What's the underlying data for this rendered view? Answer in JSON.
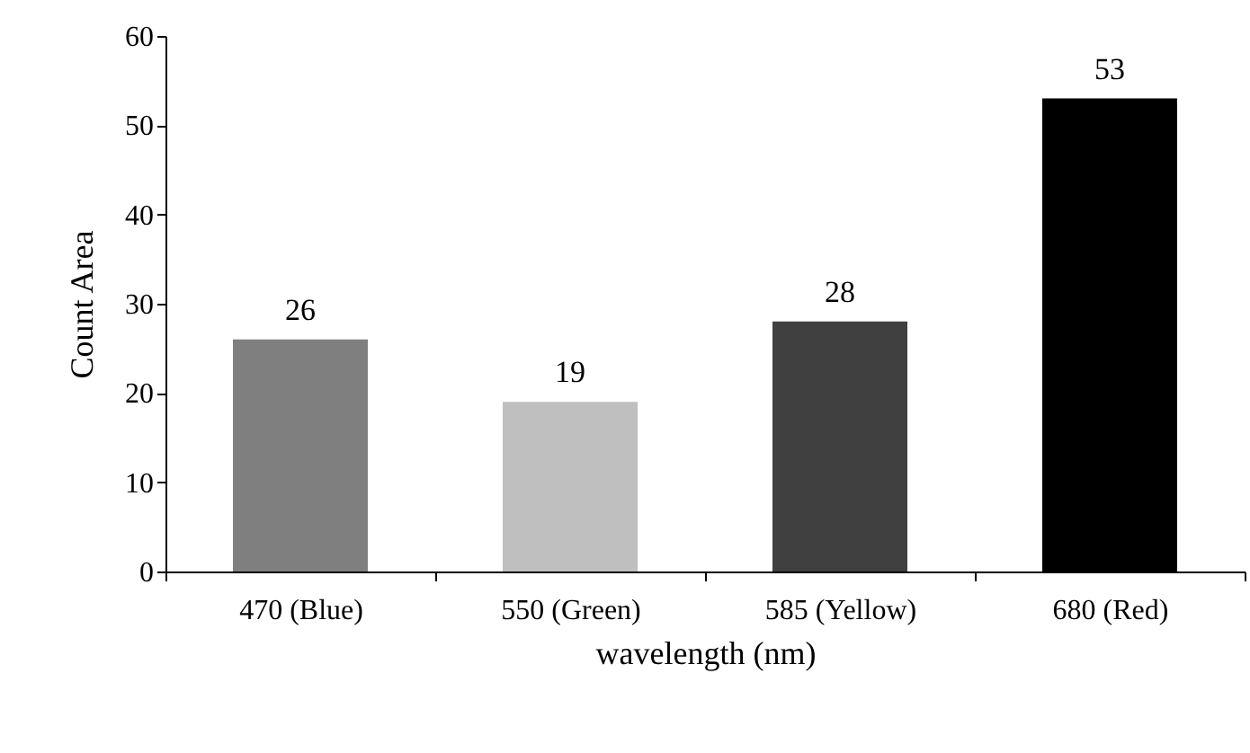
{
  "chart_data": {
    "type": "bar",
    "xlabel": "wavelength (nm)",
    "ylabel": "Count Area",
    "categories": [
      "470 (Blue)",
      "550 (Green)",
      "585 (Yellow)",
      "680 (Red)"
    ],
    "values": [
      26,
      19,
      28,
      53
    ],
    "colors": [
      "#7f7f7f",
      "#bfbfbf",
      "#404040",
      "#000000"
    ],
    "ylim": [
      0,
      60
    ],
    "yticks": [
      0,
      10,
      20,
      30,
      40,
      50,
      60
    ],
    "grid": false,
    "data_labels": true
  }
}
